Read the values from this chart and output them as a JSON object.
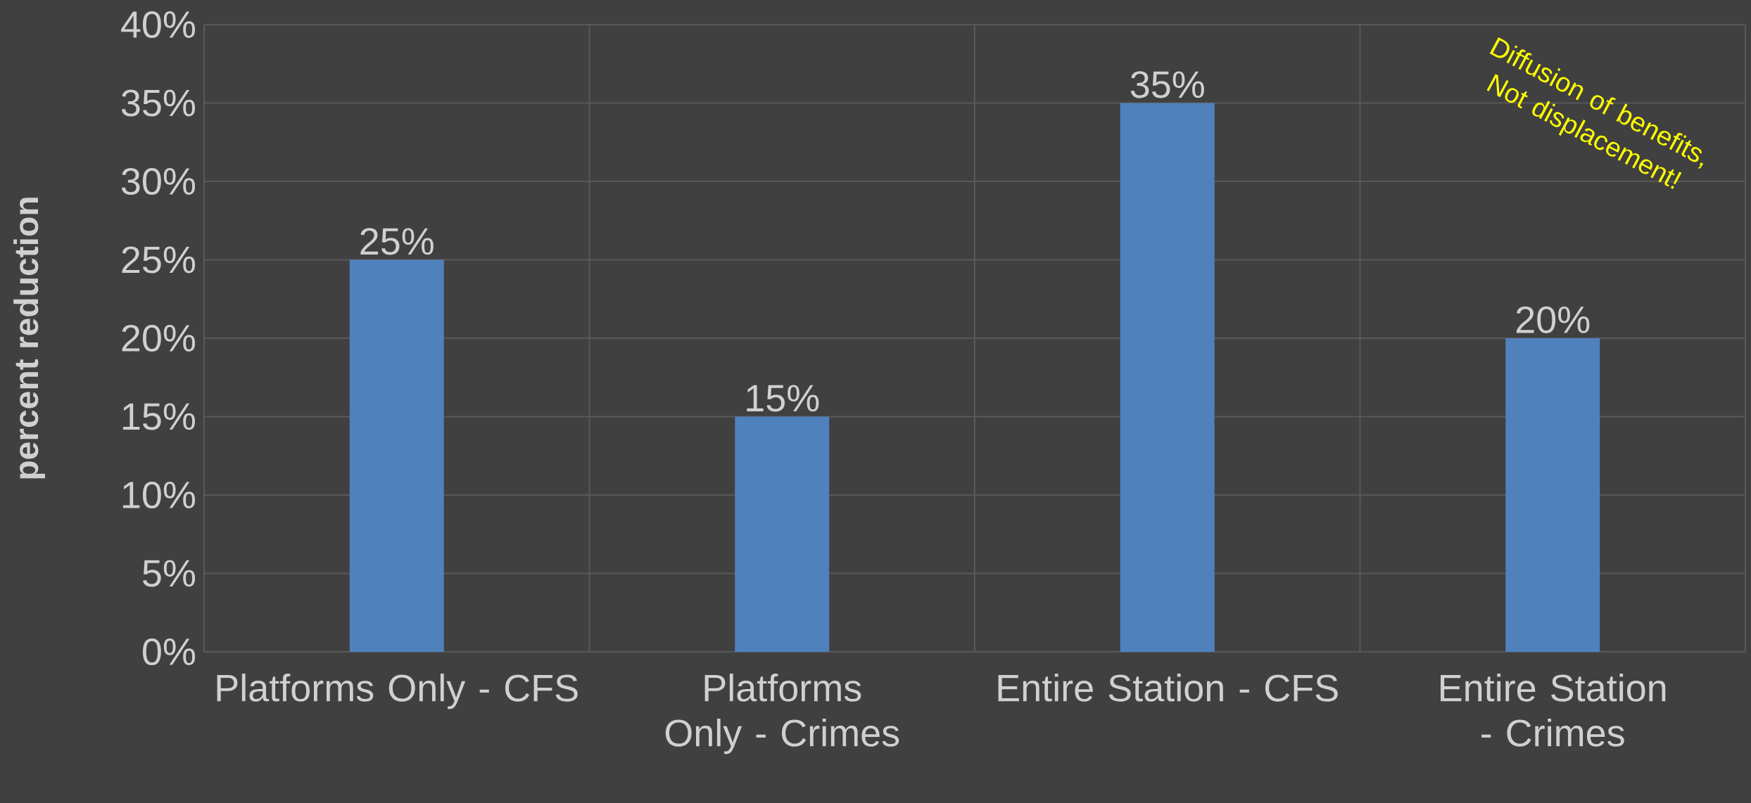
{
  "chart_data": {
    "type": "bar",
    "ylabel": "percent reduction",
    "categories": [
      "Platforms Only - CFS",
      "Platforms Only - Crimes",
      "Entire Station - CFS",
      "Entire Station - Crimes"
    ],
    "values": [
      25,
      15,
      35,
      20
    ],
    "color": "#4f81bd",
    "value_labels": [
      "25%",
      "15%",
      "35%",
      "20%"
    ],
    "ylim": [
      0,
      40
    ],
    "yticks": [
      {
        "value": 0,
        "label": "0%"
      },
      {
        "value": 5,
        "label": "5%"
      },
      {
        "value": 10,
        "label": "10%"
      },
      {
        "value": 15,
        "label": "15%"
      },
      {
        "value": 20,
        "label": "20%"
      },
      {
        "value": 25,
        "label": "25%"
      },
      {
        "value": 30,
        "label": "30%"
      },
      {
        "value": 35,
        "label": "35%"
      },
      {
        "value": 40,
        "label": "40%"
      }
    ],
    "grid": true,
    "annotations": [
      "Diffusion of benefits, Not displacement!"
    ]
  }
}
